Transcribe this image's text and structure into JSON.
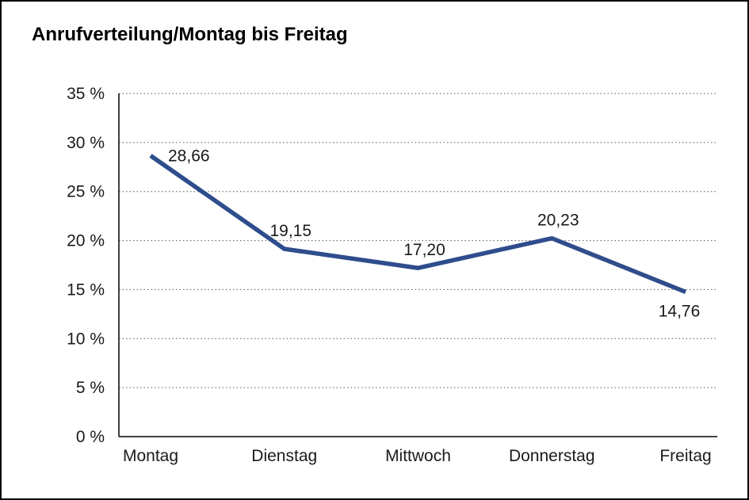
{
  "chart_data": {
    "type": "line",
    "title": "Anrufverteilung/Montag bis Freitag",
    "categories": [
      "Montag",
      "Dienstag",
      "Mittwoch",
      "Donnerstag",
      "Freitag"
    ],
    "values": [
      28.66,
      19.15,
      17.2,
      20.23,
      14.76
    ],
    "value_labels": [
      "28,66",
      "19,15",
      "17,20",
      "20,23",
      "14,76"
    ],
    "label_placement": [
      "right",
      "above",
      "above",
      "above",
      "below"
    ],
    "y_ticks": [
      "35 %",
      "30 %",
      "25 %",
      "20 %",
      "15 %",
      "10 %",
      "5 %",
      "0 %"
    ],
    "y_tick_values": [
      35,
      30,
      25,
      20,
      15,
      10,
      5,
      0
    ],
    "ylim": [
      0,
      35
    ],
    "xlabel": "",
    "ylabel": "",
    "grid": "horizontal-dotted",
    "legend": "none",
    "line_color": "#2E4D8C",
    "grid_color": "#555555",
    "axis_color": "#000000"
  }
}
